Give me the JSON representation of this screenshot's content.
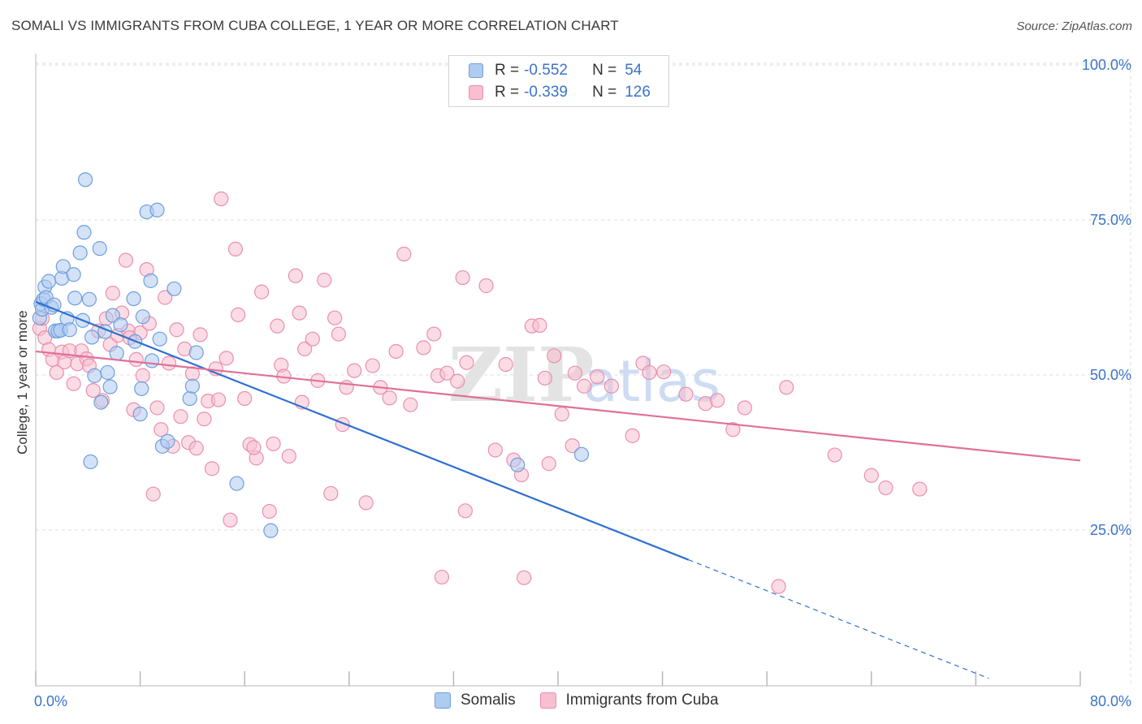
{
  "title": "SOMALI VS IMMIGRANTS FROM CUBA COLLEGE, 1 YEAR OR MORE CORRELATION CHART",
  "source": "Source: ZipAtlas.com",
  "watermark": {
    "zip": "ZIP",
    "atlas": "atlas"
  },
  "legend": {
    "r_label": "R =",
    "n_label": "N =",
    "rows": [
      {
        "r": "-0.552",
        "n": "54"
      },
      {
        "r": "-0.339",
        "n": "126"
      }
    ]
  },
  "bottom_legend": [
    "Somalis",
    "Immigrants from Cuba"
  ],
  "colors": {
    "somali_fill": "#aecbf0",
    "somali_stroke": "#6f9fdc",
    "somali_line": "#2f6fd1",
    "cuba_fill": "#f7bfd0",
    "cuba_stroke": "#e98fae",
    "cuba_line": "#e07098",
    "tick_text": "#3b74c9",
    "grid": "#dcdcdc"
  },
  "chart_data": {
    "type": "scatter",
    "title": "SOMALI VS IMMIGRANTS FROM CUBA COLLEGE, 1 YEAR OR MORE CORRELATION CHART",
    "xlabel": "",
    "ylabel": "College, 1 year or more",
    "xlim": [
      0,
      80
    ],
    "ylim": [
      0,
      105
    ],
    "x_tick_labels": [
      "0.0%",
      "80.0%"
    ],
    "y_ticks": [
      25,
      50,
      75,
      100
    ],
    "y_tick_labels": [
      "25.0%",
      "50.0%",
      "75.0%",
      "100.0%"
    ],
    "grid": true,
    "series": [
      {
        "name": "Somalis",
        "r": -0.552,
        "n": 54,
        "trend": {
          "x1": 0,
          "y1": 61.8,
          "x2": 50,
          "y2": 20.2,
          "dash_to_x": 73
        },
        "points": [
          [
            0.3,
            59.2
          ],
          [
            0.4,
            61.5
          ],
          [
            0.5,
            60.6
          ],
          [
            0.6,
            62.2
          ],
          [
            0.7,
            64.2
          ],
          [
            0.8,
            62.5
          ],
          [
            1.0,
            65.1
          ],
          [
            1.2,
            60.9
          ],
          [
            1.4,
            61.3
          ],
          [
            1.5,
            57.1
          ],
          [
            1.7,
            57.1
          ],
          [
            1.9,
            57.2
          ],
          [
            2.0,
            65.6
          ],
          [
            2.1,
            67.5
          ],
          [
            2.4,
            59.1
          ],
          [
            2.6,
            57.3
          ],
          [
            2.9,
            66.2
          ],
          [
            3.0,
            62.4
          ],
          [
            3.4,
            69.7
          ],
          [
            3.6,
            58.8
          ],
          [
            3.7,
            73.0
          ],
          [
            3.8,
            81.5
          ],
          [
            4.1,
            62.2
          ],
          [
            4.3,
            56.1
          ],
          [
            4.5,
            49.9
          ],
          [
            4.9,
            70.4
          ],
          [
            5.0,
            45.6
          ],
          [
            5.3,
            57.0
          ],
          [
            5.5,
            50.4
          ],
          [
            5.7,
            48.1
          ],
          [
            5.9,
            59.6
          ],
          [
            6.2,
            53.5
          ],
          [
            6.5,
            58.1
          ],
          [
            7.5,
            62.3
          ],
          [
            7.6,
            55.4
          ],
          [
            8.0,
            43.7
          ],
          [
            8.1,
            47.8
          ],
          [
            8.2,
            59.4
          ],
          [
            8.5,
            76.3
          ],
          [
            8.8,
            65.2
          ],
          [
            8.9,
            52.3
          ],
          [
            9.3,
            76.6
          ],
          [
            9.5,
            55.8
          ],
          [
            9.7,
            38.5
          ],
          [
            10.1,
            39.3
          ],
          [
            10.6,
            63.9
          ],
          [
            11.8,
            46.2
          ],
          [
            12.0,
            48.2
          ],
          [
            12.3,
            53.6
          ],
          [
            15.4,
            32.5
          ],
          [
            18.0,
            24.9
          ],
          [
            36.9,
            35.5
          ],
          [
            41.8,
            37.2
          ],
          [
            4.2,
            36.0
          ]
        ]
      },
      {
        "name": "Immigrants from Cuba",
        "r": -0.339,
        "n": 126,
        "trend": {
          "x1": 0,
          "y1": 53.8,
          "x2": 80,
          "y2": 36.2
        },
        "points": [
          [
            0.3,
            57.5
          ],
          [
            0.5,
            59.1
          ],
          [
            0.7,
            56.0
          ],
          [
            1.0,
            54.1
          ],
          [
            1.3,
            52.5
          ],
          [
            1.6,
            50.4
          ],
          [
            2.0,
            53.7
          ],
          [
            2.2,
            52.1
          ],
          [
            2.6,
            53.9
          ],
          [
            2.9,
            48.6
          ],
          [
            3.2,
            51.8
          ],
          [
            3.5,
            53.9
          ],
          [
            3.9,
            52.6
          ],
          [
            4.1,
            51.5
          ],
          [
            4.4,
            47.5
          ],
          [
            4.8,
            57.1
          ],
          [
            5.1,
            45.9
          ],
          [
            5.4,
            59.1
          ],
          [
            5.7,
            54.9
          ],
          [
            5.9,
            63.2
          ],
          [
            6.3,
            56.4
          ],
          [
            6.6,
            60.0
          ],
          [
            6.9,
            68.5
          ],
          [
            7.1,
            57.1
          ],
          [
            7.5,
            44.4
          ],
          [
            7.7,
            52.5
          ],
          [
            8.0,
            56.8
          ],
          [
            8.2,
            49.9
          ],
          [
            8.5,
            67.0
          ],
          [
            8.7,
            58.3
          ],
          [
            9.0,
            30.8
          ],
          [
            9.3,
            44.7
          ],
          [
            9.6,
            41.2
          ],
          [
            9.9,
            62.5
          ],
          [
            10.2,
            51.9
          ],
          [
            10.5,
            38.5
          ],
          [
            10.8,
            57.3
          ],
          [
            11.1,
            43.3
          ],
          [
            11.4,
            54.2
          ],
          [
            11.7,
            39.1
          ],
          [
            12.0,
            50.2
          ],
          [
            12.3,
            38.2
          ],
          [
            12.6,
            56.5
          ],
          [
            12.9,
            42.9
          ],
          [
            13.2,
            45.8
          ],
          [
            13.5,
            34.9
          ],
          [
            13.8,
            51.0
          ],
          [
            14.2,
            78.4
          ],
          [
            14.6,
            52.7
          ],
          [
            14.9,
            26.6
          ],
          [
            15.3,
            70.3
          ],
          [
            15.5,
            59.7
          ],
          [
            16.0,
            46.2
          ],
          [
            16.4,
            38.8
          ],
          [
            16.9,
            36.6
          ],
          [
            17.3,
            63.4
          ],
          [
            17.9,
            28.0
          ],
          [
            18.2,
            38.9
          ],
          [
            18.5,
            57.9
          ],
          [
            18.8,
            51.6
          ],
          [
            19.0,
            49.8
          ],
          [
            19.4,
            36.9
          ],
          [
            19.9,
            66.0
          ],
          [
            20.2,
            60.0
          ],
          [
            20.4,
            45.6
          ],
          [
            20.6,
            54.2
          ],
          [
            21.2,
            55.8
          ],
          [
            21.6,
            49.1
          ],
          [
            22.1,
            65.3
          ],
          [
            22.6,
            30.9
          ],
          [
            22.9,
            59.2
          ],
          [
            23.2,
            56.6
          ],
          [
            23.5,
            42.0
          ],
          [
            23.8,
            48.0
          ],
          [
            24.4,
            50.7
          ],
          [
            25.3,
            29.4
          ],
          [
            25.8,
            51.5
          ],
          [
            27.1,
            46.3
          ],
          [
            27.6,
            53.8
          ],
          [
            28.2,
            69.5
          ],
          [
            28.7,
            45.2
          ],
          [
            29.7,
            54.4
          ],
          [
            30.5,
            56.6
          ],
          [
            30.8,
            49.9
          ],
          [
            31.1,
            17.4
          ],
          [
            31.5,
            50.3
          ],
          [
            32.3,
            49.0
          ],
          [
            32.7,
            65.7
          ],
          [
            32.9,
            28.1
          ],
          [
            34.5,
            64.4
          ],
          [
            35.2,
            37.9
          ],
          [
            36.0,
            51.7
          ],
          [
            36.6,
            36.3
          ],
          [
            37.2,
            33.9
          ],
          [
            37.4,
            17.3
          ],
          [
            38.0,
            57.9
          ],
          [
            38.6,
            58.0
          ],
          [
            39.0,
            49.5
          ],
          [
            39.3,
            35.7
          ],
          [
            39.7,
            53.1
          ],
          [
            40.3,
            43.7
          ],
          [
            41.1,
            38.6
          ],
          [
            41.3,
            50.3
          ],
          [
            42.0,
            48.2
          ],
          [
            43.0,
            49.7
          ],
          [
            44.1,
            48.2
          ],
          [
            45.7,
            40.2
          ],
          [
            46.5,
            51.9
          ],
          [
            47.0,
            50.4
          ],
          [
            48.1,
            50.5
          ],
          [
            49.8,
            46.9
          ],
          [
            51.3,
            45.4
          ],
          [
            52.2,
            45.9
          ],
          [
            53.4,
            41.2
          ],
          [
            54.3,
            44.7
          ],
          [
            56.9,
            15.9
          ],
          [
            57.5,
            48.0
          ],
          [
            61.2,
            37.1
          ],
          [
            64.0,
            33.8
          ],
          [
            65.1,
            31.8
          ],
          [
            67.7,
            31.6
          ],
          [
            26.4,
            48.0
          ],
          [
            16.7,
            38.3
          ],
          [
            33.0,
            52.0
          ],
          [
            14.0,
            46.0
          ],
          [
            7.2,
            56.0
          ]
        ]
      }
    ]
  }
}
